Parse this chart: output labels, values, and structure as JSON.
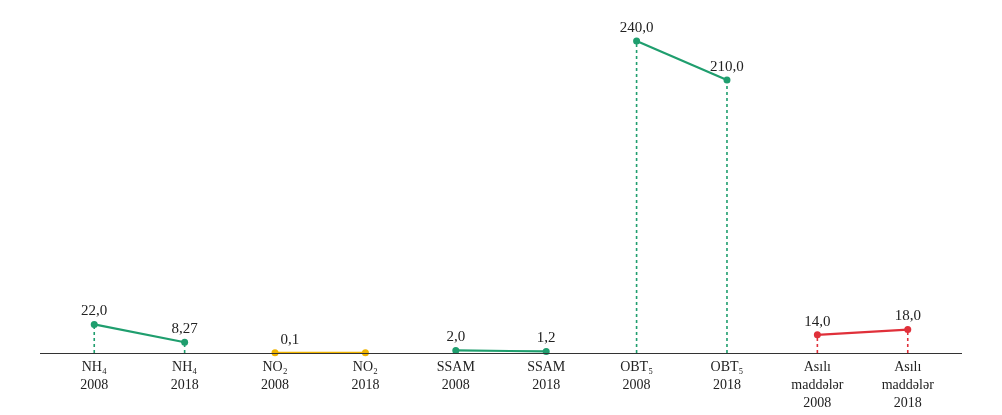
{
  "chart_data": {
    "type": "lollipop",
    "categories": [
      "NH₄\n2008",
      "NH₄\n2018",
      "NO₂\n2008",
      "NO₂\n2018",
      "SSAM\n2008",
      "SSAM\n2018",
      "OBT₅\n2008",
      "OBT₅\n2018",
      "Asılı\nmaddələr\n2008",
      "Asılı\nmaddələr\n2018"
    ],
    "series": [
      {
        "type": "line",
        "color": "#1f9e6e",
        "x": [
          "NH₄\n2008",
          "NH₄\n2018"
        ],
        "values": [
          22.0,
          8.27
        ],
        "marker": "none",
        "line_style": "solid"
      },
      {
        "type": "line",
        "color": "#f0b400",
        "x": [
          "NO₂\n2008",
          "NO₂\n2018"
        ],
        "values": [
          0.1,
          0.1
        ],
        "marker": "none",
        "line_style": "solid"
      },
      {
        "type": "line",
        "color": "#1f9e6e",
        "x": [
          "SSAM\n2008",
          "SSAM\n2018"
        ],
        "values": [
          2.0,
          1.2
        ],
        "marker": "none",
        "line_style": "solid"
      },
      {
        "type": "line",
        "color": "#1f9e6e",
        "x": [
          "OBT₅\n2008",
          "OBT₅\n2018"
        ],
        "values": [
          240.0,
          210.0
        ],
        "marker": "none",
        "line_style": "solid"
      },
      {
        "type": "line",
        "color": "#e0303a",
        "x": [
          "Asılı\nmaddələr\n2008",
          "Asılı\nmaddələr\n2018"
        ],
        "values": [
          14.0,
          18.0
        ],
        "marker": "none",
        "line_style": "solid"
      },
      {
        "color": "#1f9e6e",
        "x": [
          "NH₄\n2008",
          "NH₄\n2018"
        ],
        "values": [
          22.0,
          8.27
        ],
        "value_labels": [
          "22,0",
          "8,27"
        ],
        "marker": "circle",
        "line_style": "dotted"
      },
      {
        "color": "#f0b400",
        "x": [
          "NO₂\n2008",
          "NO₂\n2018"
        ],
        "values": [
          0.1,
          0.1
        ],
        "value_labels": [
          "0,1",
          null
        ],
        "marker": "circle",
        "line_style": "solid"
      },
      {
        "color": "#1f9e6e",
        "x": [
          "SSAM\n2008",
          "SSAM\n2018"
        ],
        "values": [
          2.0,
          1.2
        ],
        "value_labels": [
          "2,0",
          "1,2"
        ],
        "marker": "circle",
        "line_style": "dotted"
      },
      {
        "color": "#1f9e6e",
        "x": [
          "OBT₅\n2008",
          "OBT₅\n2018"
        ],
        "values": [
          240.0,
          210.0
        ],
        "value_labels": [
          "240,0",
          "210,0"
        ],
        "marker": "circle",
        "line_style": "dotted"
      },
      {
        "color": "#e0303a",
        "x": [
          "Asılı\nmaddələr\n2008",
          "Asılı\nmaddələr\n2018"
        ],
        "values": [
          14.0,
          18.0
        ],
        "value_labels": [
          "14,0",
          "18,0"
        ],
        "marker": "circle",
        "line_style": "dotted"
      }
    ],
    "tick_labels": "x",
    "grid": false
  }
}
